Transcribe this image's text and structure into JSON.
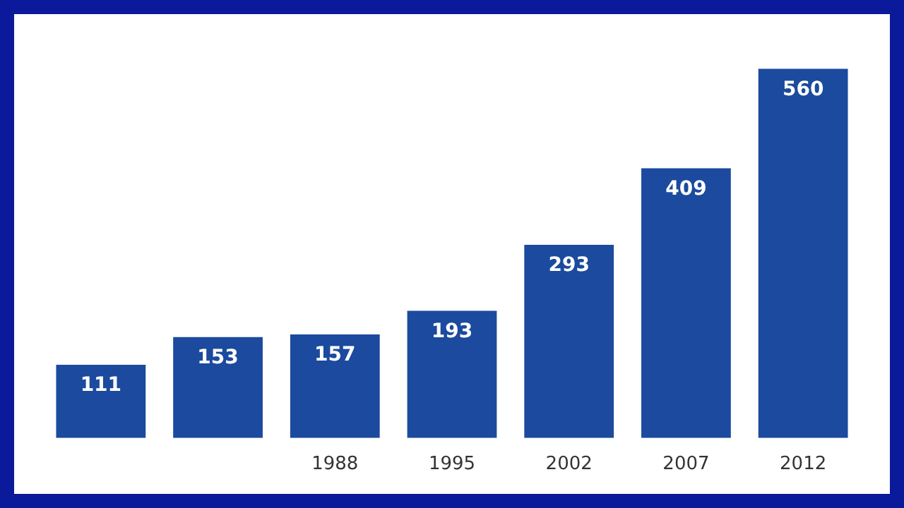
{
  "chart_data": {
    "type": "bar",
    "categories": [
      null,
      null,
      "1988",
      "1995",
      "2002",
      "2007",
      "2012"
    ],
    "values": [
      111,
      153,
      157,
      193,
      293,
      409,
      560
    ],
    "color": "#1b4a9e",
    "data_labels": true,
    "grid": false,
    "legend": false
  }
}
